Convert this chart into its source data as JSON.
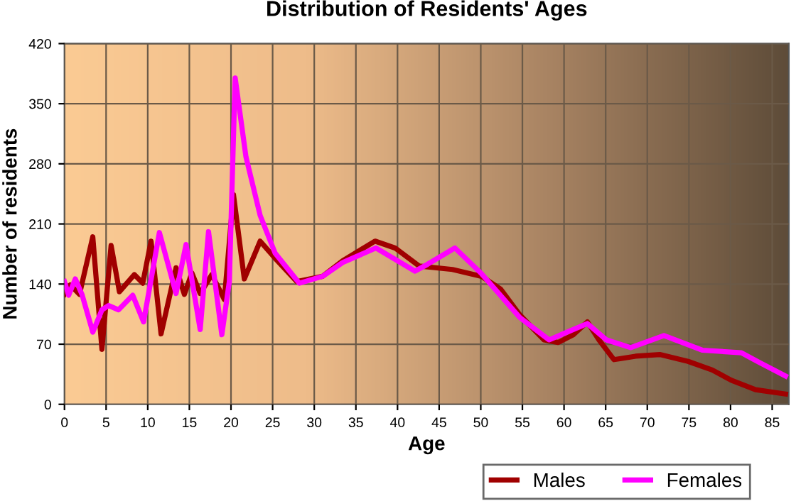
{
  "chart_data": {
    "type": "line",
    "title": "Distribution of Residents' Ages",
    "xlabel": "Age",
    "ylabel": "Number of residents",
    "xlim": [
      0,
      87
    ],
    "xticks": [
      0,
      5,
      10,
      15,
      20,
      25,
      30,
      35,
      40,
      45,
      50,
      55,
      60,
      65,
      70,
      75,
      80,
      85
    ],
    "ylim": [
      0,
      420
    ],
    "yticks": [
      0,
      70,
      140,
      210,
      280,
      350,
      420
    ],
    "grid": true,
    "legend": "bottom",
    "marker": "none",
    "line_style": "solid",
    "series": [
      {
        "name": "Males",
        "color": "#a00000",
        "x": [
          0,
          0.7,
          1.8,
          3.4,
          4.5,
          5.6,
          6.6,
          8.4,
          9.4,
          10.4,
          11.6,
          13.4,
          14.4,
          15.3,
          16.3,
          17.7,
          19.2,
          20.3,
          21.6,
          23.5,
          25.3,
          27.9,
          31,
          33.4,
          37.3,
          39.7,
          42.6,
          46.6,
          50.1,
          52.4,
          54.7,
          57.6,
          59.3,
          61.1,
          62.8,
          64.2,
          66,
          68.6,
          71.5,
          74.9,
          77.8,
          80.1,
          83,
          86.6
        ],
        "values": [
          128,
          139,
          128,
          195,
          64,
          185,
          131,
          151,
          141,
          190,
          82,
          159,
          128,
          153,
          129,
          151,
          122,
          244,
          146,
          190,
          170,
          143,
          149,
          167,
          190,
          182,
          161,
          157,
          149,
          134,
          104,
          75,
          72,
          81,
          96,
          75,
          52,
          56,
          58,
          50,
          40,
          28,
          17,
          12
        ]
      },
      {
        "name": "Females",
        "color": "#ff00ff",
        "x": [
          0,
          0.5,
          1.3,
          2.1,
          3.4,
          4.5,
          5.3,
          6.5,
          8.2,
          9.5,
          11.4,
          13.4,
          14.6,
          16.3,
          17.3,
          18.9,
          19.8,
          20.5,
          21.8,
          23.5,
          25.3,
          28.2,
          31,
          33.4,
          37.4,
          42.1,
          43.6,
          46.9,
          50.1,
          54.7,
          58.2,
          60.6,
          62.8,
          65.1,
          68,
          72,
          76.6,
          81.3,
          83.6,
          86.6
        ],
        "values": [
          143,
          127,
          146,
          128,
          84,
          110,
          115,
          110,
          127,
          96,
          200,
          129,
          186,
          87,
          201,
          81,
          143,
          380,
          288,
          220,
          176,
          141,
          149,
          165,
          182,
          155,
          163,
          182,
          152,
          101,
          75,
          85,
          94,
          75,
          66,
          80,
          63,
          60,
          48,
          33
        ]
      }
    ]
  }
}
